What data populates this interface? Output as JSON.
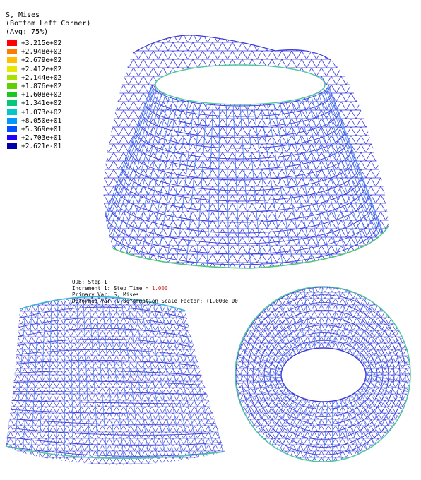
{
  "legend": {
    "title": "S, Mises",
    "subtitle": "(Bottom Left Corner)",
    "average": "(Avg: 75%)",
    "colors": [
      "#ff0000",
      "#ff7a00",
      "#ffbf00",
      "#e8e800",
      "#a8e000",
      "#5ed000",
      "#18c820",
      "#00c878",
      "#00c8c8",
      "#0098ff",
      "#0050ff",
      "#2000ff",
      "#0000aa"
    ],
    "labels": [
      "+3.215e+02",
      "+2.948e+02",
      "+2.679e+02",
      "+2.412e+02",
      "+2.144e+02",
      "+1.876e+02",
      "+1.608e+02",
      "+1.341e+02",
      "+1.073e+02",
      "+8.050e+01",
      "+5.369e+01",
      "+2.703e+01",
      "+2.621e-01"
    ]
  },
  "info": {
    "line1": "ODB: Step-1",
    "line2_prefix": "Increment    1: Step Time =",
    "line2_time": "1.000",
    "line3": "Primary Var: S, Mises",
    "line4": "Deformed Var: U   Deformation Scale Factor: +1.000e+00"
  },
  "colors": {
    "mesh_primary": "#2a2ad8",
    "mesh_secondary": "#4a7cf0",
    "mesh_cyan": "#38b8d8",
    "mesh_green": "#50c878"
  }
}
